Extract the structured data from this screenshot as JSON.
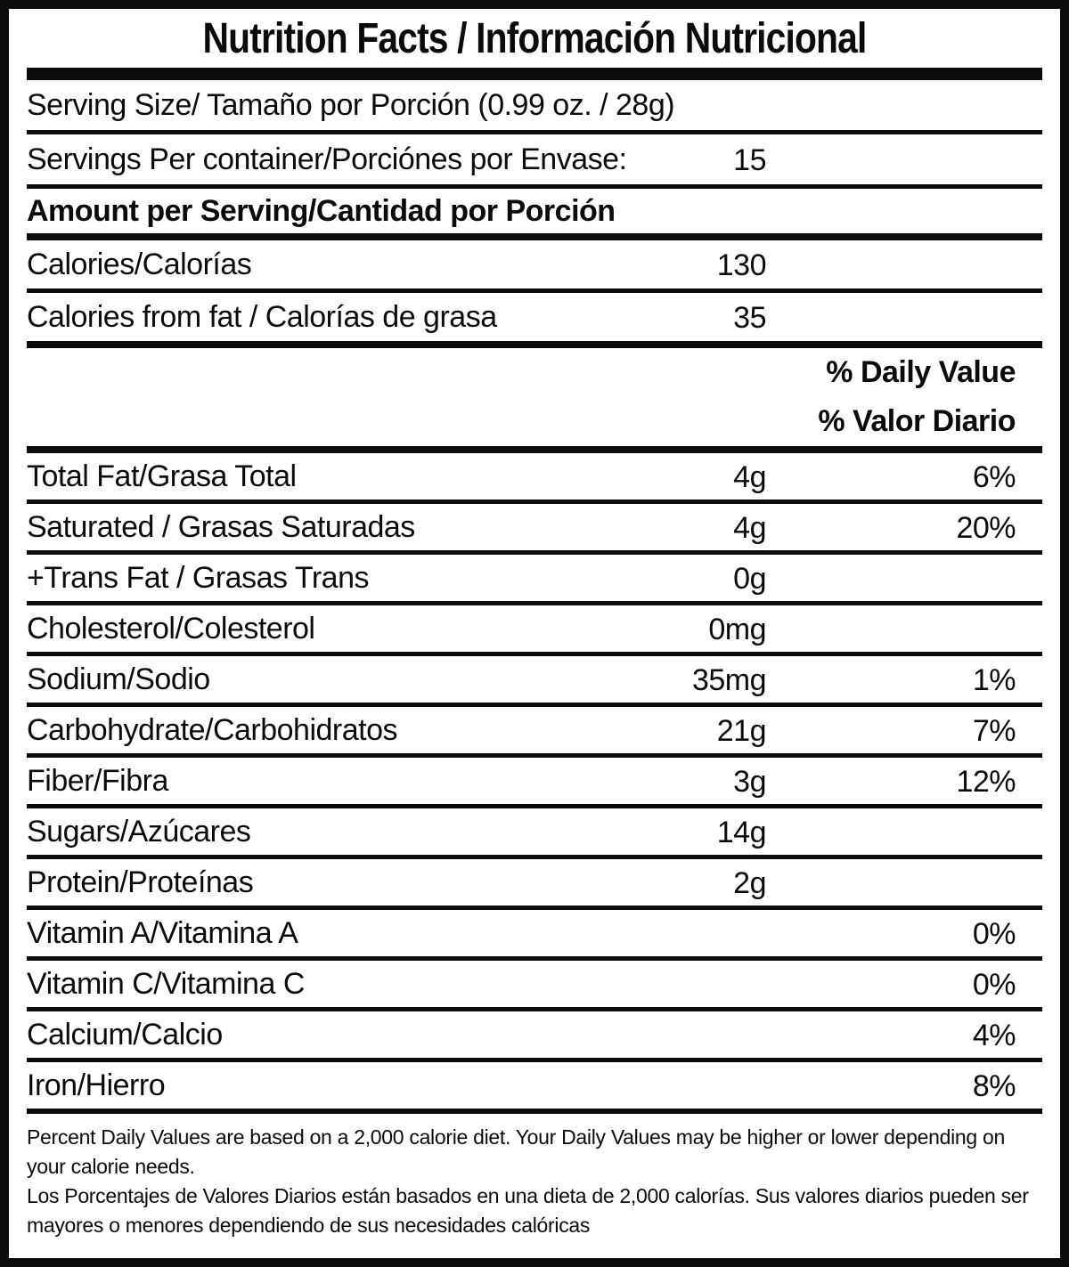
{
  "title": "Nutrition Facts / Información Nutricional",
  "serving": {
    "serving_size_label": "Serving Size/ Tamaño por Porción  (0.99 oz. / 28g)",
    "servings_per_container_label": "Servings Per container/Porciónes por Envase:",
    "servings_per_container_value": "15"
  },
  "amount_header": "Amount per Serving/Cantidad por Porción",
  "calories": {
    "calories_label": "Calories/Calorías",
    "calories_value": "130",
    "calories_from_fat_label": "Calories from fat / Calorías de grasa",
    "calories_from_fat_value": "35"
  },
  "daily_value_header": {
    "en": "% Daily Value",
    "es": "% Valor Diario"
  },
  "nutrients": [
    {
      "label": "Total Fat/Grasa Total",
      "amount": "4g",
      "dv": "6%"
    },
    {
      "label": "Saturated / Grasas Saturadas",
      "amount": "4g",
      "dv": "20%"
    },
    {
      "label": "+Trans Fat / Grasas Trans",
      "amount": "0g",
      "dv": ""
    },
    {
      "label": "Cholesterol/Colesterol",
      "amount": "0mg",
      "dv": ""
    },
    {
      "label": "Sodium/Sodio",
      "amount": "35mg",
      "dv": "1%"
    },
    {
      "label": "Carbohydrate/Carbohidratos",
      "amount": "21g",
      "dv": "7%"
    },
    {
      "label": "Fiber/Fibra",
      "amount": "3g",
      "dv": "12%"
    },
    {
      "label": "Sugars/Azúcares",
      "amount": "14g",
      "dv": ""
    },
    {
      "label": "Protein/Proteínas",
      "amount": "2g",
      "dv": ""
    },
    {
      "label": "Vitamin A/Vitamina A",
      "amount": "",
      "dv": "0%"
    },
    {
      "label": "Vitamin C/Vitamina C",
      "amount": "",
      "dv": "0%"
    },
    {
      "label": "Calcium/Calcio",
      "amount": "",
      "dv": "4%"
    },
    {
      "label": "Iron/Hierro",
      "amount": "",
      "dv": "8%"
    }
  ],
  "footnote": {
    "en": "Percent Daily Values are based on a 2,000 calorie diet. Your Daily Values may be higher or lower depending on your calorie needs.",
    "es": "Los Porcentajes de Valores Diarios están basados en una dieta de 2,000 calorías. Sus valores diarios pueden ser mayores o menores dependiendo de sus necesidades calóricas"
  },
  "colors": {
    "ink": "#0b0b0b",
    "paper": "#ffffff"
  }
}
